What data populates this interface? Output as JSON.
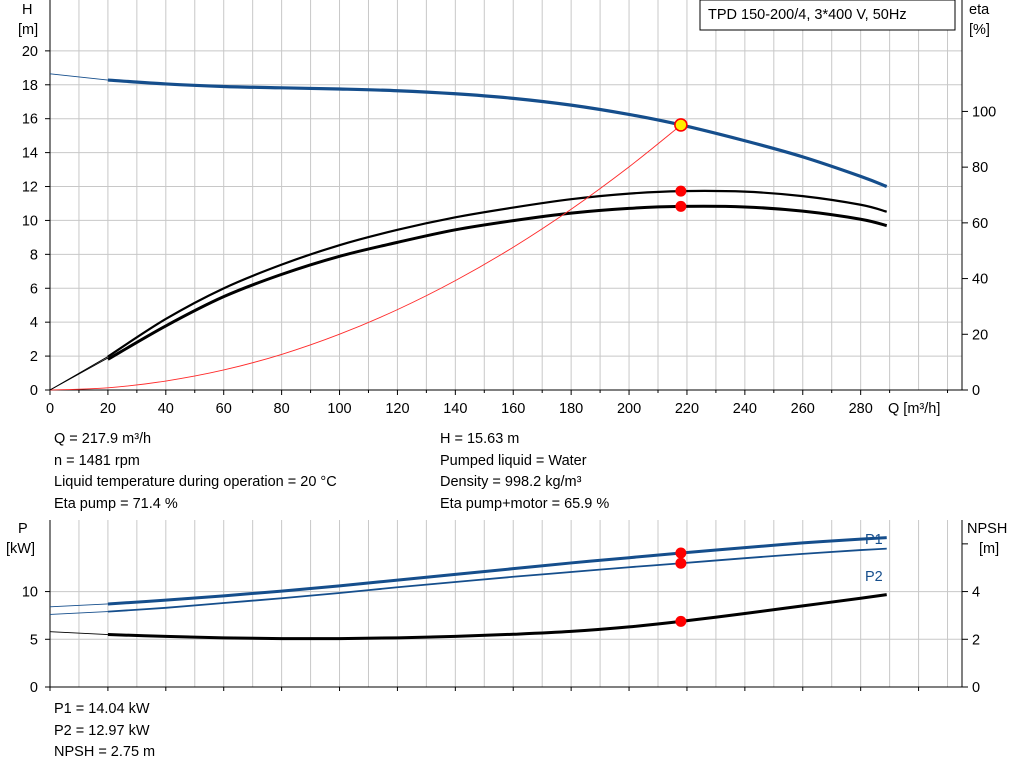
{
  "title_box": "TPD 150-200/4, 3*400 V, 50Hz",
  "colors": {
    "head": "#154e8c",
    "eff": "#000000",
    "power": "#154e8c",
    "npsh": "#000000",
    "system": "#ff2a2a",
    "marker": "#ff0000",
    "duty": "#ffee00",
    "grid": "#c8c8c8"
  },
  "chart_data": [
    {
      "type": "line",
      "name": "head-efficiency",
      "xlabel": "Q [m³/h]",
      "ylabel_left": [
        "H",
        "[m]"
      ],
      "ylabel_right": [
        "eta",
        "[%]"
      ],
      "x_ticks": [
        0,
        20,
        40,
        60,
        80,
        100,
        120,
        140,
        160,
        180,
        200,
        220,
        240,
        260,
        280
      ],
      "xlim": [
        0,
        315
      ],
      "ylim": [
        0,
        23
      ],
      "yticks_left": [
        0,
        2,
        4,
        6,
        8,
        10,
        12,
        14,
        16,
        18,
        20
      ],
      "ylim_right": [
        0,
        140
      ],
      "yticks_right": [
        0,
        20,
        40,
        60,
        80,
        100
      ],
      "grid": true,
      "series": [
        {
          "key": "head",
          "axis": "left",
          "role": "pump-curve",
          "x": [
            20,
            40,
            60,
            80,
            100,
            120,
            140,
            160,
            180,
            200,
            218,
            240,
            260,
            280,
            289
          ],
          "y": [
            18.28,
            18.05,
            17.9,
            17.82,
            17.75,
            17.65,
            17.47,
            17.2,
            16.8,
            16.25,
            15.63,
            14.7,
            13.75,
            12.6,
            12.0
          ]
        },
        {
          "key": "head-extrapolated",
          "axis": "left",
          "role": "thin-extension",
          "x": [
            0,
            20
          ],
          "y": [
            18.65,
            18.28
          ]
        },
        {
          "key": "eta-pump",
          "axis": "right",
          "role": "efficiency",
          "x": [
            20,
            40,
            60,
            80,
            100,
            120,
            140,
            160,
            180,
            200,
            218,
            240,
            260,
            280,
            289
          ],
          "y": [
            12,
            25.5,
            36.5,
            45,
            52,
            57.5,
            62,
            65.5,
            68.5,
            70.5,
            71.4,
            71.2,
            69.6,
            66.5,
            64.0
          ]
        },
        {
          "key": "eta-pump-motor",
          "axis": "right",
          "role": "efficiency",
          "x": [
            20,
            40,
            60,
            80,
            100,
            120,
            140,
            160,
            180,
            200,
            218,
            240,
            260,
            280,
            289
          ],
          "y": [
            11,
            23,
            33.5,
            41.5,
            48,
            53,
            57.5,
            60.8,
            63.5,
            65.2,
            65.9,
            65.7,
            64.2,
            61.3,
            59.0
          ]
        },
        {
          "key": "eta-extrapolated",
          "axis": "right",
          "role": "thin-extension",
          "x": [
            0,
            20
          ],
          "y": [
            0,
            11.5
          ]
        },
        {
          "key": "system-curve",
          "axis": "left",
          "role": "system",
          "x": [
            0,
            20,
            40,
            60,
            80,
            100,
            120,
            140,
            160,
            180,
            200,
            218
          ],
          "y": [
            0,
            0.13,
            0.53,
            1.18,
            2.1,
            3.29,
            4.74,
            6.45,
            8.42,
            10.66,
            13.16,
            15.63
          ]
        }
      ],
      "duty_point": {
        "x": 217.9,
        "head": 15.63,
        "eta_pump": 71.4,
        "eta_pump_motor": 65.9
      }
    },
    {
      "type": "line",
      "name": "power-npsh",
      "ylabel_left": [
        "P",
        "[kW]"
      ],
      "ylabel_right": [
        "NPSH",
        "[m]"
      ],
      "xlim": [
        0,
        315
      ],
      "ylim": [
        0,
        17.5
      ],
      "yticks_left": [
        0,
        5,
        10
      ],
      "ylim_right": [
        0,
        7
      ],
      "yticks_right": [
        0,
        2,
        4
      ],
      "grid": true,
      "series": [
        {
          "key": "p1",
          "name": "P1",
          "axis": "left",
          "x": [
            20,
            40,
            60,
            80,
            100,
            120,
            140,
            160,
            180,
            200,
            218,
            240,
            260,
            280,
            289
          ],
          "y": [
            8.7,
            9.1,
            9.55,
            10.05,
            10.6,
            11.2,
            11.8,
            12.4,
            13.0,
            13.55,
            14.04,
            14.6,
            15.1,
            15.5,
            15.65
          ]
        },
        {
          "key": "p2",
          "name": "P2",
          "axis": "left",
          "x": [
            20,
            40,
            60,
            80,
            100,
            120,
            140,
            160,
            180,
            200,
            218,
            240,
            260,
            280,
            289
          ],
          "y": [
            7.9,
            8.3,
            8.8,
            9.3,
            9.85,
            10.45,
            11.0,
            11.55,
            12.05,
            12.55,
            12.97,
            13.5,
            13.95,
            14.35,
            14.5
          ]
        },
        {
          "key": "npsh",
          "axis": "right",
          "x": [
            20,
            40,
            60,
            80,
            100,
            120,
            140,
            160,
            180,
            200,
            218,
            240,
            260,
            280,
            289
          ],
          "y": [
            2.2,
            2.12,
            2.06,
            2.03,
            2.03,
            2.06,
            2.12,
            2.21,
            2.33,
            2.52,
            2.75,
            3.08,
            3.4,
            3.72,
            3.87
          ]
        },
        {
          "key": "p1-extrapolated",
          "axis": "left",
          "role": "thin-extension",
          "x": [
            0,
            20
          ],
          "y": [
            8.4,
            8.7
          ]
        },
        {
          "key": "p2-extrapolated",
          "axis": "left",
          "role": "thin-extension",
          "x": [
            0,
            20
          ],
          "y": [
            7.6,
            7.9
          ]
        },
        {
          "key": "npsh-extrapolated",
          "axis": "right",
          "role": "thin-extension",
          "x": [
            0,
            20
          ],
          "y": [
            2.32,
            2.2
          ]
        }
      ],
      "duty_point": {
        "x": 217.9,
        "p1": 14.04,
        "p2": 12.97,
        "npsh": 2.75
      }
    }
  ],
  "info_top_left": [
    "Q = 217.9 m³/h",
    "n = 1481 rpm",
    "Liquid temperature during operation = 20 °C",
    "Eta pump = 71.4 %"
  ],
  "info_top_right": [
    "H = 15.63 m",
    "Pumped liquid = Water",
    "Density = 998.2 kg/m³",
    "Eta pump+motor = 65.9 %"
  ],
  "info_bottom": [
    "P1 = 14.04 kW",
    "P2 = 12.97 kW",
    "NPSH = 2.75 m"
  ]
}
